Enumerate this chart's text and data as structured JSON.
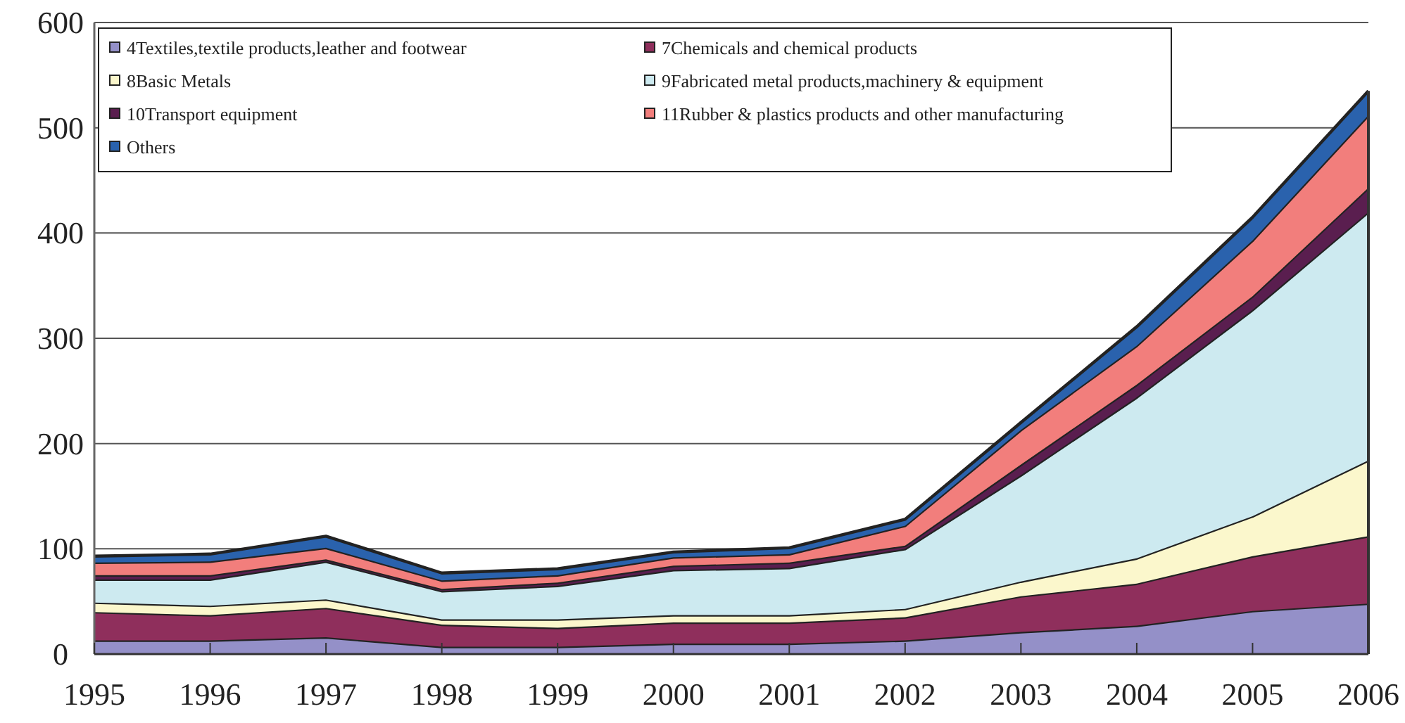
{
  "chart_data": {
    "type": "area",
    "stacked": true,
    "categories": [
      "1995",
      "1996",
      "1997",
      "1998",
      "1999",
      "2000",
      "2001",
      "2002",
      "2003",
      "2004",
      "2005",
      "2006"
    ],
    "series": [
      {
        "name": "4Textiles,textile products,leather and footwear",
        "color": "#9490c8",
        "values": [
          13,
          13,
          16,
          7,
          7,
          10,
          10,
          13,
          21,
          27,
          41,
          48
        ]
      },
      {
        "name": "7Chemicals and chemical products",
        "color": "#8f2f5c",
        "values": [
          27,
          24,
          28,
          21,
          18,
          20,
          20,
          22,
          34,
          40,
          52,
          64
        ]
      },
      {
        "name": "8Basic Metals",
        "color": "#fbf7cc",
        "values": [
          9,
          9,
          8,
          5,
          8,
          7,
          7,
          8,
          14,
          24,
          38,
          72
        ]
      },
      {
        "name": "9Fabricated metal products,machinery & equipment",
        "color": "#cdeaf0",
        "values": [
          22,
          25,
          36,
          27,
          32,
          43,
          45,
          57,
          101,
          153,
          196,
          236
        ]
      },
      {
        "name": "10Transport equipment",
        "color": "#5a1e4f",
        "values": [
          4,
          4,
          2,
          2,
          3,
          4,
          5,
          3,
          10,
          12,
          13,
          23
        ]
      },
      {
        "name": "11Rubber & plastics products and other manufacturing",
        "color": "#f27e7c",
        "values": [
          12,
          13,
          11,
          8,
          7,
          8,
          8,
          19,
          33,
          37,
          53,
          69
        ]
      },
      {
        "name": "Others",
        "color": "#2a62ad",
        "values": [
          6,
          7,
          11,
          7,
          6,
          5,
          6,
          6,
          7,
          18,
          22,
          23
        ]
      }
    ],
    "ylim": [
      0,
      600
    ],
    "yticks": [
      0,
      100,
      200,
      300,
      400,
      500,
      600
    ],
    "grid": "y",
    "legend": "top left"
  }
}
